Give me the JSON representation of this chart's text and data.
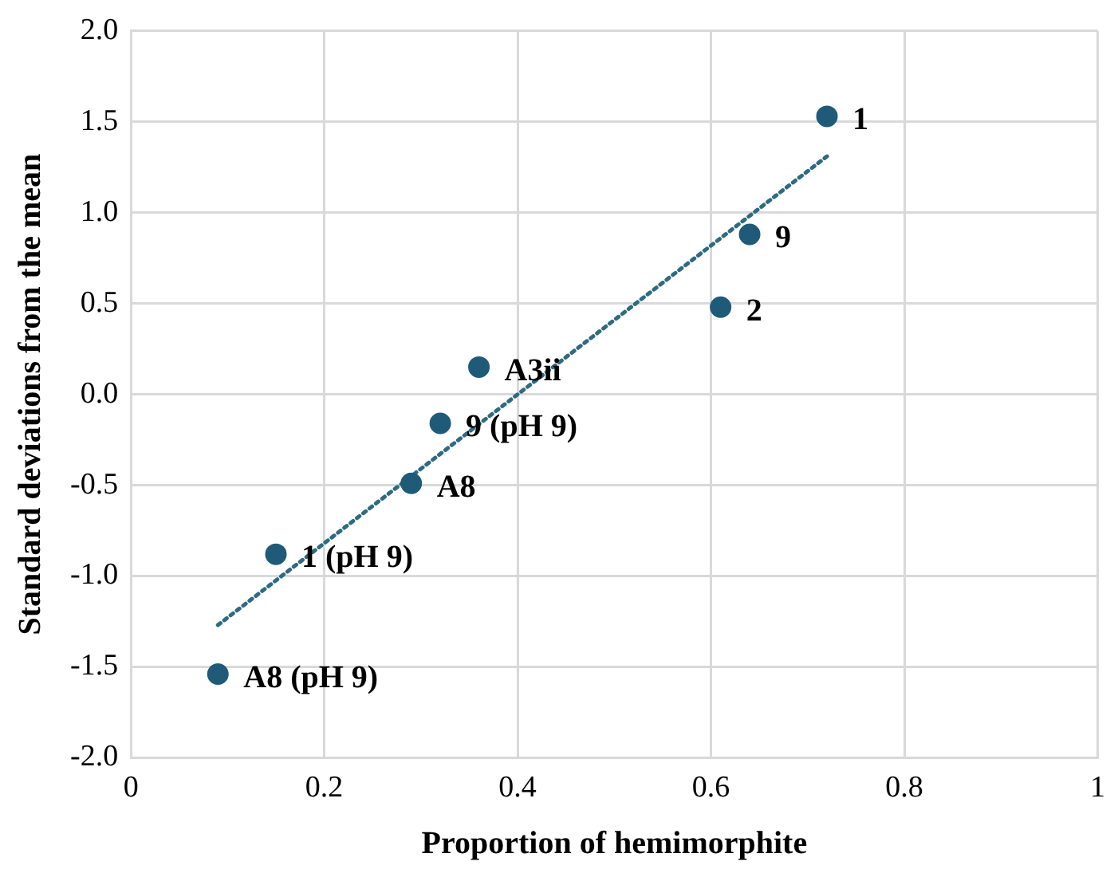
{
  "chart_data": {
    "type": "scatter",
    "xlabel": "Proportion of hemimorphite",
    "ylabel": "Standard deviations from the mean",
    "xlim": [
      0,
      1
    ],
    "xticks": [
      0,
      0.2,
      0.4,
      0.6,
      0.8,
      1
    ],
    "ylim": [
      -2,
      2
    ],
    "yticks": [
      {
        "value": -2,
        "label": "-2.0"
      },
      {
        "value": -1.5,
        "label": "-1.5"
      },
      {
        "value": -1,
        "label": "-1.0"
      },
      {
        "value": -0.5,
        "label": "-0.5"
      },
      {
        "value": 0,
        "label": "0.0"
      },
      {
        "value": 0.5,
        "label": "0.5"
      },
      {
        "value": 1,
        "label": "1.0"
      },
      {
        "value": 1.5,
        "label": "1.5"
      },
      {
        "value": 2,
        "label": "2.0"
      }
    ],
    "grid": true,
    "legend": false,
    "marker": "circle",
    "series": [
      {
        "color": "#1f5a78",
        "x": [
          0.72,
          0.64,
          0.61,
          0.36,
          0.32,
          0.29,
          0.15,
          0.09
        ],
        "values": [
          1.53,
          0.88,
          0.48,
          0.15,
          -0.16,
          -0.49,
          -0.88,
          -1.54
        ]
      },
      {
        "type": "line",
        "color": "#2e6b80",
        "line_style": "dotted",
        "marker": "none",
        "x": [
          0.09,
          0.72
        ],
        "values": [
          -1.27,
          1.31
        ]
      }
    ],
    "annotations": [
      {
        "text": "1",
        "x": 0.72,
        "y": 1.53
      },
      {
        "text": "9",
        "x": 0.64,
        "y": 0.88
      },
      {
        "text": "2",
        "x": 0.61,
        "y": 0.48
      },
      {
        "text": "A3ii",
        "x": 0.36,
        "y": 0.15
      },
      {
        "text": "9 (pH 9)",
        "x": 0.32,
        "y": -0.16
      },
      {
        "text": "A8",
        "x": 0.29,
        "y": -0.49
      },
      {
        "text": "1 (pH 9)",
        "x": 0.15,
        "y": -0.88
      },
      {
        "text": "A8 (pH 9)",
        "x": 0.09,
        "y": -1.54
      }
    ]
  }
}
